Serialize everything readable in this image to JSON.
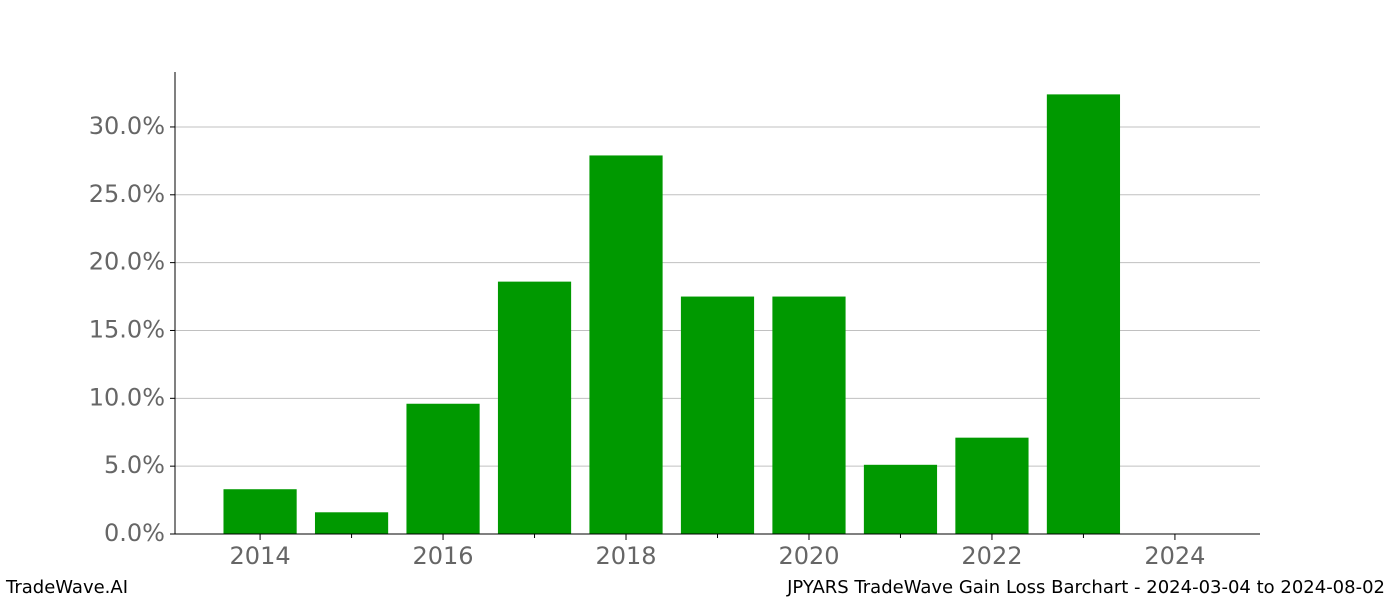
{
  "chart_data": {
    "type": "bar",
    "title": "JPYARS TradeWave Gain Loss Barchart - 2024-03-04 to 2024-08-02",
    "brand": "TradeWave.AI",
    "x": [
      2014,
      2015,
      2016,
      2017,
      2018,
      2019,
      2020,
      2021,
      2022,
      2023
    ],
    "values": [
      3.3,
      1.6,
      9.6,
      18.6,
      27.9,
      17.5,
      17.5,
      5.1,
      7.1,
      32.4
    ],
    "color": "#009900",
    "xlim": [
      2013.07,
      2024.93
    ],
    "xticks": [
      2014,
      2016,
      2018,
      2020,
      2022,
      2024
    ],
    "xminorticks": [
      2015,
      2017,
      2019,
      2021,
      2023
    ],
    "ylim": [
      0,
      34.05
    ],
    "yticks": [
      {
        "value": 0,
        "label": "0.0%"
      },
      {
        "value": 5,
        "label": "5.0%"
      },
      {
        "value": 10,
        "label": "10.0%"
      },
      {
        "value": 15,
        "label": "15.0%"
      },
      {
        "value": 20,
        "label": "20.0%"
      },
      {
        "value": 25,
        "label": "25.0%"
      },
      {
        "value": 30,
        "label": "30.0%"
      }
    ],
    "grid": true
  }
}
